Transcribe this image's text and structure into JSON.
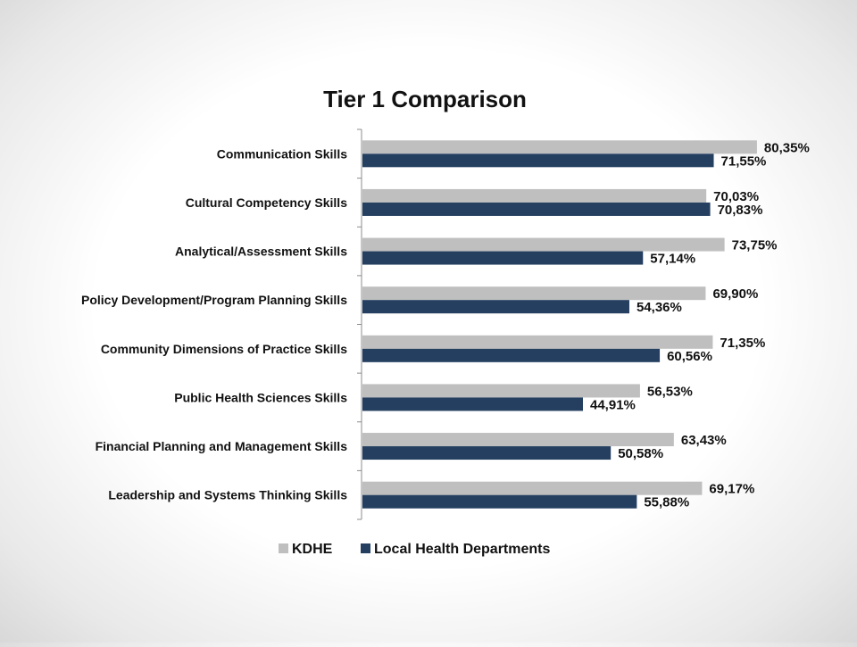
{
  "chart_data": {
    "type": "bar",
    "orientation": "horizontal",
    "title": "Tier 1 Comparison",
    "xlabel": "",
    "ylabel": "",
    "xlim": [
      0,
      100
    ],
    "grid": false,
    "legend_position": "bottom",
    "categories": [
      "Communication Skills",
      "Cultural Competency Skills",
      "Analytical/Assessment Skills",
      "Policy Development/Program Planning Skills",
      "Community Dimensions of Practice Skills",
      "Public Health Sciences Skills",
      "Financial Planning and Management Skills",
      "Leadership and Systems Thinking Skills"
    ],
    "series": [
      {
        "name": "KDHE",
        "color": "#bfbfbf",
        "values": [
          80.35,
          70.03,
          73.75,
          69.9,
          71.35,
          56.53,
          63.43,
          69.17
        ],
        "labels": [
          "80,35%",
          "70,03%",
          "73,75%",
          "69,90%",
          "71,35%",
          "56,53%",
          "63,43%",
          "69,17%"
        ]
      },
      {
        "name": "Local Health Departments",
        "color": "#243f60",
        "values": [
          71.55,
          70.83,
          57.14,
          54.36,
          60.56,
          44.91,
          50.58,
          55.88
        ],
        "labels": [
          "71,55%",
          "70,83%",
          "57,14%",
          "54,36%",
          "60,56%",
          "44,91%",
          "50,58%",
          "55,88%"
        ]
      }
    ]
  }
}
